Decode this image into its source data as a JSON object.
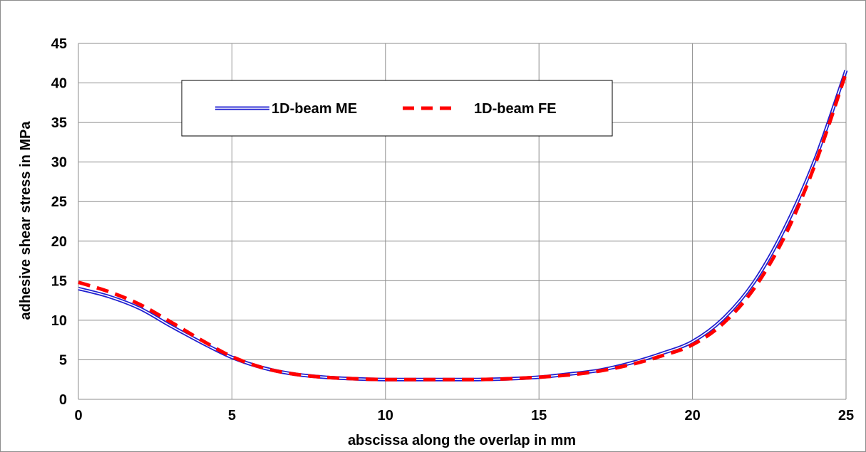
{
  "chart_data": {
    "type": "line",
    "title": "",
    "xlabel": "abscissa along the overlap in mm",
    "ylabel": "adhesive shear stress in MPa",
    "xlim": [
      0,
      25
    ],
    "ylim": [
      0,
      45
    ],
    "xticks": [
      0,
      5,
      10,
      15,
      20,
      25
    ],
    "yticks": [
      0,
      5,
      10,
      15,
      20,
      25,
      30,
      35,
      40,
      45
    ],
    "grid": true,
    "legend_position": "top-left",
    "series": [
      {
        "name": "1D-beam ME",
        "color": "#1f1fd0",
        "style": "double-line",
        "x": [
          0,
          1,
          2,
          3,
          4,
          5,
          6,
          7,
          8,
          9,
          10,
          11,
          12,
          13,
          14,
          15,
          16,
          17,
          18,
          19,
          20,
          21,
          22,
          23,
          24,
          25
        ],
        "y": [
          14.0,
          13.0,
          11.5,
          9.3,
          7.2,
          5.3,
          4.0,
          3.2,
          2.8,
          2.6,
          2.5,
          2.5,
          2.5,
          2.5,
          2.6,
          2.8,
          3.2,
          3.7,
          4.6,
          5.8,
          7.3,
          10.2,
          14.8,
          21.6,
          30.4,
          41.6
        ]
      },
      {
        "name": "1D-beam FE",
        "color": "#ff0000",
        "style": "dashed",
        "x": [
          0,
          1,
          2,
          3,
          4,
          5,
          6,
          7,
          8,
          9,
          10,
          11,
          12,
          13,
          14,
          15,
          16,
          17,
          18,
          19,
          20,
          21,
          22,
          23,
          24,
          25
        ],
        "y": [
          14.8,
          13.6,
          12.0,
          9.8,
          7.5,
          5.4,
          4.0,
          3.2,
          2.8,
          2.6,
          2.5,
          2.5,
          2.5,
          2.5,
          2.6,
          2.8,
          3.1,
          3.6,
          4.4,
          5.5,
          6.9,
          9.6,
          14.0,
          20.6,
          29.8,
          41.3
        ]
      }
    ]
  }
}
